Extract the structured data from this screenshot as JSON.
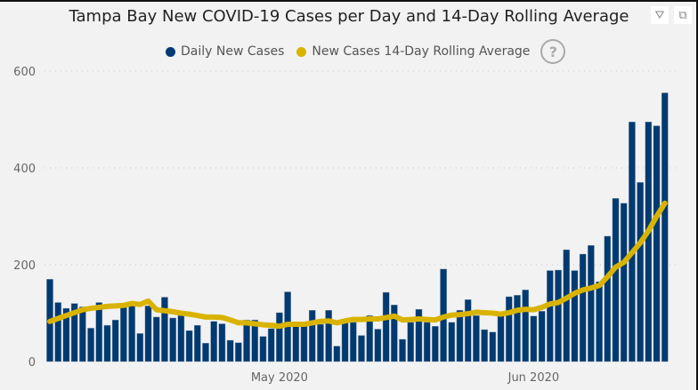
{
  "header": {
    "filter_icon": "filter-icon",
    "focus_icon": "focus-mode-icon",
    "help_icon": "question-icon",
    "help_label": "?"
  },
  "chart_data": {
    "type": "bar",
    "title": "Tampa Bay New COVID-19 Cases per Day and 14-Day Rolling Average",
    "xlabel": "",
    "ylabel": "",
    "ylim": [
      0,
      600
    ],
    "yticks": [
      "0",
      "200",
      "400",
      "600"
    ],
    "xticks": [
      {
        "label": "May 2020",
        "index": 28
      },
      {
        "label": "Jun 2020",
        "index": 59
      }
    ],
    "x_start": "2020-04-03",
    "x_end": "2020-06-17",
    "legend_position": "top-center",
    "grid": true,
    "series": [
      {
        "name": "Daily New Cases",
        "type": "bar",
        "color": "#003a70",
        "values": [
          170,
          122,
          110,
          120,
          113,
          69,
          122,
          75,
          86,
          115,
          115,
          58,
          115,
          92,
          133,
          90,
          95,
          64,
          75,
          38,
          83,
          78,
          44,
          39,
          86,
          86,
          52,
          68,
          101,
          144,
          75,
          75,
          106,
          77,
          106,
          32,
          80,
          81,
          54,
          95,
          67,
          143,
          117,
          46,
          81,
          108,
          81,
          73,
          191,
          81,
          106,
          128,
          95,
          66,
          61,
          95,
          134,
          137,
          148,
          94,
          104,
          188,
          189,
          231,
          188,
          222,
          240,
          165,
          259,
          337,
          327,
          495,
          370,
          495,
          487,
          555
        ]
      },
      {
        "name": "New Cases 14-Day Rolling Average",
        "type": "line",
        "color": "#d9b300",
        "values": [
          83,
          89,
          95,
          101,
          107,
          110,
          112,
          114,
          115,
          116,
          120,
          118,
          125,
          107,
          105,
          103,
          100,
          98,
          95,
          92,
          92,
          91,
          86,
          80,
          80,
          78,
          76,
          75,
          73,
          77,
          77,
          77,
          80,
          83,
          84,
          80,
          84,
          87,
          87,
          88,
          88,
          91,
          94,
          86,
          87,
          88,
          87,
          86,
          92,
          96,
          97,
          99,
          102,
          101,
          100,
          98,
          101,
          106,
          108,
          107,
          112,
          119,
          122,
          131,
          141,
          148,
          152,
          157,
          175,
          195,
          205,
          225,
          245,
          270,
          300,
          327
        ]
      }
    ]
  }
}
